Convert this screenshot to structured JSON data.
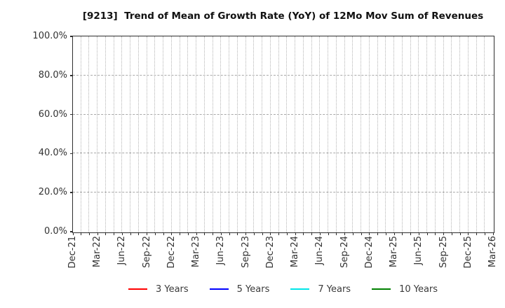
{
  "title": "[9213]  Trend of Mean of Growth Rate (YoY) of 12Mo Mov Sum of Revenues",
  "chart_data": {
    "type": "line",
    "title": "[9213]  Trend of Mean of Growth Rate (YoY) of 12Mo Mov Sum of Revenues",
    "xlabel": "",
    "ylabel": "",
    "x_tick_labels": [
      "Dec-21",
      "Mar-22",
      "Jun-22",
      "Sep-22",
      "Dec-22",
      "Mar-23",
      "Jun-23",
      "Sep-23",
      "Dec-23",
      "Mar-24",
      "Jun-24",
      "Sep-24",
      "Dec-24",
      "Mar-25",
      "Jun-25",
      "Sep-25",
      "Dec-25",
      "Mar-26"
    ],
    "x_minor_gridline_interval": "monthly",
    "y_ticks": [
      0,
      20,
      40,
      60,
      80,
      100
    ],
    "y_tick_labels": [
      "0.0%",
      "20.0%",
      "40.0%",
      "60.0%",
      "80.0%",
      "100.0%"
    ],
    "ylim": [
      0,
      100
    ],
    "grid": true,
    "legend_position": "bottom",
    "series": [
      {
        "name": "3 Years",
        "color": "#ff0000",
        "values": []
      },
      {
        "name": "5 Years",
        "color": "#0000ff",
        "values": []
      },
      {
        "name": "7 Years",
        "color": "#00e5e8",
        "values": []
      },
      {
        "name": "10 Years",
        "color": "#008000",
        "values": []
      }
    ]
  }
}
